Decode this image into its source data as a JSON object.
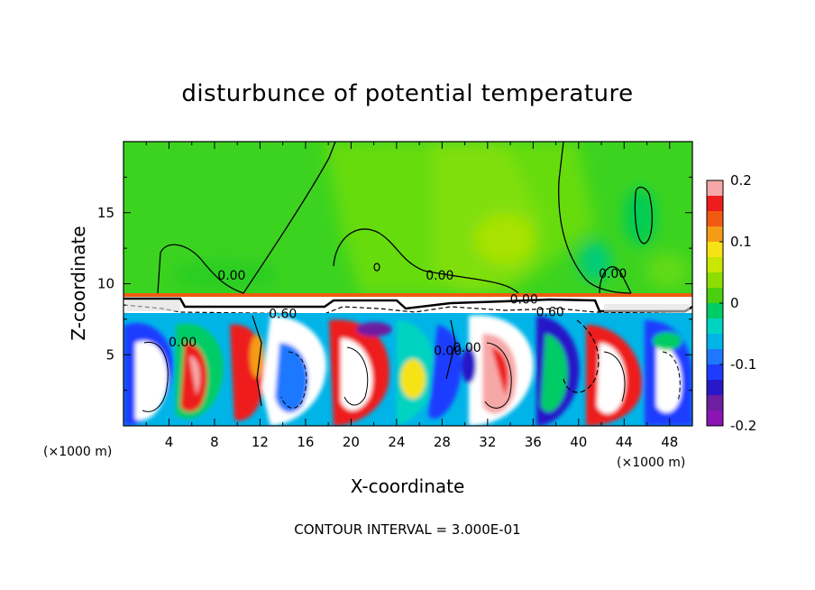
{
  "chart_data": {
    "type": "heatmap",
    "title": "disturbunce of potential temperature",
    "xlabel": "X-coordinate",
    "ylabel": "Z-coordinate",
    "x_unit": "(×1000 m)",
    "x_unit_right": "(×1000 m)",
    "xlim": [
      0,
      50
    ],
    "ylim": [
      0,
      20
    ],
    "x_ticks": [
      "4",
      "8",
      "12",
      "16",
      "20",
      "24",
      "28",
      "32",
      "36",
      "40",
      "44",
      "48"
    ],
    "y_ticks": [
      "5",
      "10",
      "15"
    ],
    "colorbar": {
      "range": [
        -0.2,
        0.2
      ],
      "tick_labels": [
        "0.2",
        "0.1",
        "0",
        "-0.1",
        "-0.2"
      ],
      "colors": [
        "#f6a8a8",
        "#ee1c1c",
        "#f05a10",
        "#f59b16",
        "#f5e316",
        "#c8e600",
        "#8ddd00",
        "#4ccf10",
        "#00cc66",
        "#00d4c0",
        "#00b4e8",
        "#1e78ff",
        "#1e3cff",
        "#2818c8",
        "#6e1ea0",
        "#8c14b4"
      ]
    },
    "contour_labels": [
      {
        "text": "0.00",
        "x": 9.5,
        "z": 10.3
      },
      {
        "text": "0.00",
        "x": 27.8,
        "z": 10.3
      },
      {
        "text": "0.00",
        "x": 43.0,
        "z": 10.4
      },
      {
        "text": "0.00",
        "x": 35.2,
        "z": 8.6
      },
      {
        "text": "0.60",
        "x": 14.0,
        "z": 7.6
      },
      {
        "text": "0.60",
        "x": 37.5,
        "z": 7.7
      },
      {
        "text": "0.00",
        "x": 5.2,
        "z": 5.6
      },
      {
        "text": "0.00",
        "x": 28.5,
        "z": 5.0
      },
      {
        "text": "0.00",
        "x": 30.2,
        "z": 5.2
      }
    ],
    "footer": "CONTOUR INTERVAL = 3.000E-01"
  }
}
